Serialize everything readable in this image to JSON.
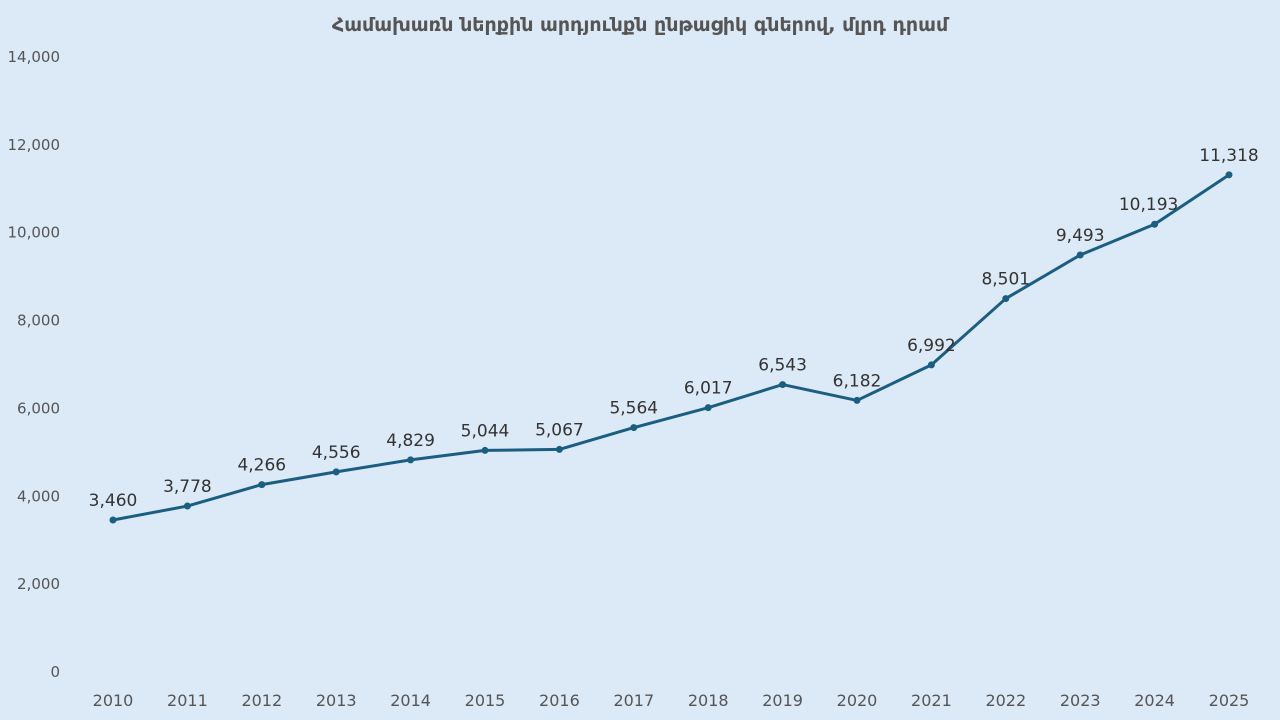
{
  "chart_data": {
    "type": "line",
    "title": "Համախառն ներքին արդյունքն ընթացիկ գներով, մլրդ դրամ",
    "xlabel": "",
    "ylabel": "",
    "categories": [
      "2010",
      "2011",
      "2012",
      "2013",
      "2014",
      "2015",
      "2016",
      "2017",
      "2018",
      "2019",
      "2020",
      "2021",
      "2022",
      "2023",
      "2024",
      "2025"
    ],
    "values": [
      3460,
      3778,
      4266,
      4556,
      4829,
      5044,
      5067,
      5564,
      6017,
      6543,
      6182,
      6992,
      8501,
      9493,
      10193,
      11318
    ],
    "ylim": [
      0,
      14000
    ],
    "yticks": [
      0,
      2000,
      4000,
      6000,
      8000,
      10000,
      12000,
      14000
    ],
    "ytick_labels": [
      "0",
      "2,000",
      "4,000",
      "6,000",
      "8,000",
      "10,000",
      "12,000",
      "14,000"
    ],
    "data_labels": [
      "3,460",
      "3,778",
      "4,266",
      "4,556",
      "4,829",
      "5,044",
      "5,067",
      "5,564",
      "6,017",
      "6,543",
      "6,182",
      "6,992",
      "8,501",
      "9,493",
      "10,193",
      "11,318"
    ],
    "grid": false,
    "legend": "none",
    "colors": {
      "line": "#1a5e82",
      "highlight_label": "#e0141e",
      "label": "#333333",
      "background": "#dce9f6"
    }
  }
}
